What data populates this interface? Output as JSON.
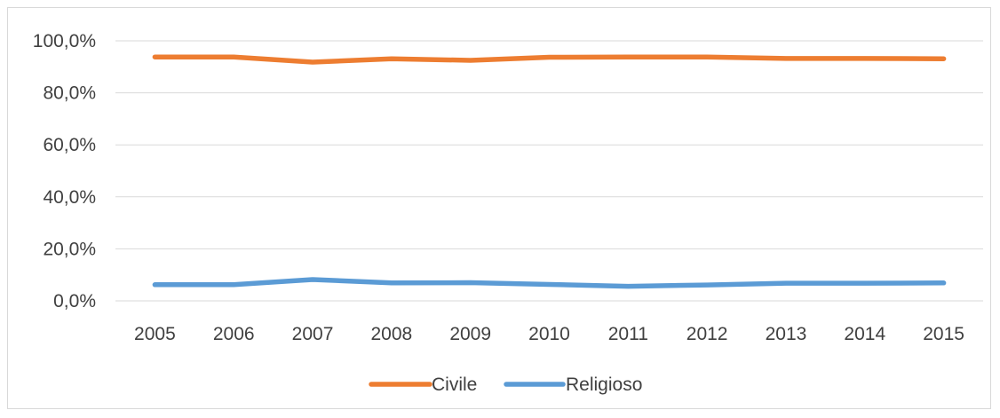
{
  "chart_data": {
    "type": "line",
    "categories": [
      "2005",
      "2006",
      "2007",
      "2008",
      "2009",
      "2010",
      "2011",
      "2012",
      "2013",
      "2014",
      "2015"
    ],
    "series": [
      {
        "name": "Civile",
        "color": "#ED7D31",
        "values": [
          93.8,
          93.8,
          91.8,
          93.1,
          92.5,
          93.7,
          93.8,
          93.8,
          93.2,
          93.2,
          93.1
        ]
      },
      {
        "name": "Religioso",
        "color": "#5B9BD5",
        "values": [
          6.2,
          6.2,
          8.2,
          6.9,
          7.0,
          6.3,
          5.6,
          6.1,
          6.8,
          6.8,
          6.9
        ]
      }
    ],
    "y_ticks": [
      "0,0%",
      "20,0%",
      "40,0%",
      "60,0%",
      "80,0%",
      "100,0%"
    ],
    "ylim": [
      0,
      100
    ],
    "grid": true,
    "legend_position": "bottom"
  }
}
